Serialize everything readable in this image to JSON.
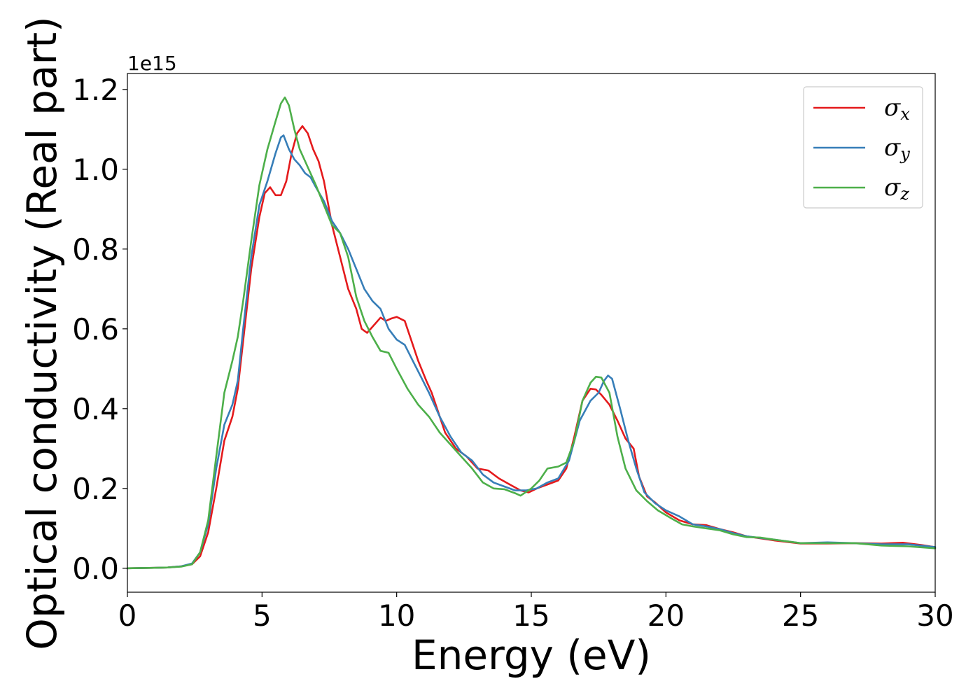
{
  "chart_data": {
    "type": "line",
    "xlabel": "Energy (eV)",
    "ylabel": "Optical conductivity (Real part)",
    "y_offset_label": "1e15",
    "xlim": [
      0,
      30
    ],
    "ylim": [
      -0.06,
      1.24
    ],
    "x_ticks": [
      0,
      5,
      10,
      15,
      20,
      25,
      30
    ],
    "y_ticks": [
      0.0,
      0.2,
      0.4,
      0.6,
      0.8,
      1.0,
      1.2
    ],
    "x_tick_labels": [
      "0",
      "5",
      "10",
      "15",
      "20",
      "25",
      "30"
    ],
    "y_tick_labels": [
      "0.0",
      "0.2",
      "0.4",
      "0.6",
      "0.8",
      "1.0",
      "1.2"
    ],
    "grid": false,
    "legend_position": "top-right",
    "series": [
      {
        "name": "σx",
        "symbol": "σ",
        "subscript": "x",
        "color": "#e41a1c",
        "points": [
          [
            0,
            0
          ],
          [
            1,
            0.001
          ],
          [
            1.5,
            0.002
          ],
          [
            2,
            0.005
          ],
          [
            2.4,
            0.01
          ],
          [
            2.7,
            0.03
          ],
          [
            3,
            0.09
          ],
          [
            3.3,
            0.2
          ],
          [
            3.6,
            0.32
          ],
          [
            3.9,
            0.38
          ],
          [
            4.1,
            0.45
          ],
          [
            4.3,
            0.57
          ],
          [
            4.6,
            0.75
          ],
          [
            4.9,
            0.88
          ],
          [
            5.1,
            0.94
          ],
          [
            5.3,
            0.955
          ],
          [
            5.5,
            0.935
          ],
          [
            5.7,
            0.935
          ],
          [
            5.9,
            0.97
          ],
          [
            6.1,
            1.04
          ],
          [
            6.3,
            1.09
          ],
          [
            6.5,
            1.108
          ],
          [
            6.7,
            1.09
          ],
          [
            6.9,
            1.05
          ],
          [
            7.1,
            1.02
          ],
          [
            7.3,
            0.97
          ],
          [
            7.6,
            0.86
          ],
          [
            7.9,
            0.78
          ],
          [
            8.2,
            0.7
          ],
          [
            8.5,
            0.65
          ],
          [
            8.7,
            0.6
          ],
          [
            8.9,
            0.59
          ],
          [
            9.1,
            0.605
          ],
          [
            9.4,
            0.628
          ],
          [
            9.6,
            0.62
          ],
          [
            9.8,
            0.626
          ],
          [
            10.0,
            0.63
          ],
          [
            10.3,
            0.62
          ],
          [
            10.5,
            0.58
          ],
          [
            10.8,
            0.52
          ],
          [
            11.1,
            0.47
          ],
          [
            11.3,
            0.44
          ],
          [
            11.5,
            0.4
          ],
          [
            11.8,
            0.34
          ],
          [
            12.2,
            0.3
          ],
          [
            12.6,
            0.28
          ],
          [
            13.0,
            0.25
          ],
          [
            13.4,
            0.245
          ],
          [
            13.8,
            0.225
          ],
          [
            14.2,
            0.21
          ],
          [
            14.6,
            0.195
          ],
          [
            14.9,
            0.19
          ],
          [
            15.2,
            0.2
          ],
          [
            15.6,
            0.21
          ],
          [
            16.0,
            0.22
          ],
          [
            16.3,
            0.25
          ],
          [
            16.6,
            0.33
          ],
          [
            16.9,
            0.42
          ],
          [
            17.2,
            0.45
          ],
          [
            17.4,
            0.448
          ],
          [
            17.6,
            0.435
          ],
          [
            17.9,
            0.41
          ],
          [
            18.2,
            0.37
          ],
          [
            18.5,
            0.325
          ],
          [
            18.8,
            0.3
          ],
          [
            19.0,
            0.23
          ],
          [
            19.3,
            0.18
          ],
          [
            19.6,
            0.165
          ],
          [
            20.0,
            0.14
          ],
          [
            20.5,
            0.12
          ],
          [
            21.0,
            0.11
          ],
          [
            21.5,
            0.108
          ],
          [
            22.0,
            0.098
          ],
          [
            22.5,
            0.09
          ],
          [
            23.0,
            0.08
          ],
          [
            24.0,
            0.07
          ],
          [
            25.0,
            0.062
          ],
          [
            26.0,
            0.062
          ],
          [
            27.0,
            0.063
          ],
          [
            28.0,
            0.062
          ],
          [
            28.8,
            0.064
          ],
          [
            29.5,
            0.058
          ],
          [
            30,
            0.053
          ]
        ]
      },
      {
        "name": "σy",
        "symbol": "σ",
        "subscript": "y",
        "color": "#377eb8",
        "points": [
          [
            0,
            0
          ],
          [
            1,
            0.001
          ],
          [
            1.5,
            0.002
          ],
          [
            2,
            0.005
          ],
          [
            2.4,
            0.012
          ],
          [
            2.7,
            0.04
          ],
          [
            3,
            0.11
          ],
          [
            3.3,
            0.25
          ],
          [
            3.6,
            0.36
          ],
          [
            3.9,
            0.41
          ],
          [
            4.1,
            0.47
          ],
          [
            4.3,
            0.6
          ],
          [
            4.6,
            0.78
          ],
          [
            4.9,
            0.91
          ],
          [
            5.2,
            0.97
          ],
          [
            5.5,
            1.04
          ],
          [
            5.7,
            1.08
          ],
          [
            5.8,
            1.085
          ],
          [
            6.0,
            1.05
          ],
          [
            6.2,
            1.025
          ],
          [
            6.4,
            1.01
          ],
          [
            6.6,
            0.99
          ],
          [
            6.8,
            0.98
          ],
          [
            7.0,
            0.955
          ],
          [
            7.3,
            0.92
          ],
          [
            7.6,
            0.87
          ],
          [
            7.9,
            0.84
          ],
          [
            8.2,
            0.8
          ],
          [
            8.5,
            0.75
          ],
          [
            8.8,
            0.7
          ],
          [
            9.1,
            0.67
          ],
          [
            9.4,
            0.65
          ],
          [
            9.7,
            0.6
          ],
          [
            10.0,
            0.573
          ],
          [
            10.3,
            0.56
          ],
          [
            10.6,
            0.52
          ],
          [
            10.9,
            0.48
          ],
          [
            11.2,
            0.44
          ],
          [
            11.6,
            0.38
          ],
          [
            12.0,
            0.33
          ],
          [
            12.4,
            0.29
          ],
          [
            12.8,
            0.27
          ],
          [
            13.2,
            0.235
          ],
          [
            13.6,
            0.215
          ],
          [
            14.0,
            0.205
          ],
          [
            14.4,
            0.195
          ],
          [
            14.8,
            0.195
          ],
          [
            15.2,
            0.2
          ],
          [
            15.6,
            0.215
          ],
          [
            16.0,
            0.225
          ],
          [
            16.4,
            0.27
          ],
          [
            16.8,
            0.37
          ],
          [
            17.2,
            0.42
          ],
          [
            17.5,
            0.44
          ],
          [
            17.7,
            0.47
          ],
          [
            17.85,
            0.483
          ],
          [
            18.0,
            0.475
          ],
          [
            18.3,
            0.4
          ],
          [
            18.6,
            0.32
          ],
          [
            18.9,
            0.25
          ],
          [
            19.2,
            0.19
          ],
          [
            19.6,
            0.163
          ],
          [
            20.0,
            0.145
          ],
          [
            20.5,
            0.13
          ],
          [
            21.0,
            0.11
          ],
          [
            21.5,
            0.105
          ],
          [
            22.0,
            0.098
          ],
          [
            22.5,
            0.088
          ],
          [
            23.0,
            0.08
          ],
          [
            24.0,
            0.072
          ],
          [
            25.0,
            0.063
          ],
          [
            26.0,
            0.065
          ],
          [
            27.0,
            0.063
          ],
          [
            28.0,
            0.06
          ],
          [
            29.0,
            0.06
          ],
          [
            30,
            0.053
          ]
        ]
      },
      {
        "name": "σz",
        "symbol": "σ",
        "subscript": "z",
        "color": "#4daf4a",
        "points": [
          [
            0,
            0
          ],
          [
            1,
            0.001
          ],
          [
            1.5,
            0.002
          ],
          [
            2,
            0.004
          ],
          [
            2.4,
            0.01
          ],
          [
            2.7,
            0.04
          ],
          [
            3,
            0.12
          ],
          [
            3.3,
            0.28
          ],
          [
            3.6,
            0.44
          ],
          [
            3.9,
            0.52
          ],
          [
            4.1,
            0.58
          ],
          [
            4.3,
            0.67
          ],
          [
            4.6,
            0.82
          ],
          [
            4.9,
            0.96
          ],
          [
            5.2,
            1.05
          ],
          [
            5.5,
            1.12
          ],
          [
            5.7,
            1.165
          ],
          [
            5.85,
            1.18
          ],
          [
            6.0,
            1.16
          ],
          [
            6.2,
            1.1
          ],
          [
            6.4,
            1.05
          ],
          [
            6.6,
            1.02
          ],
          [
            6.8,
            0.99
          ],
          [
            7.0,
            0.96
          ],
          [
            7.3,
            0.91
          ],
          [
            7.6,
            0.86
          ],
          [
            7.9,
            0.84
          ],
          [
            8.2,
            0.78
          ],
          [
            8.5,
            0.68
          ],
          [
            8.8,
            0.62
          ],
          [
            9.1,
            0.58
          ],
          [
            9.4,
            0.545
          ],
          [
            9.7,
            0.54
          ],
          [
            10.0,
            0.5
          ],
          [
            10.4,
            0.45
          ],
          [
            10.8,
            0.41
          ],
          [
            11.2,
            0.38
          ],
          [
            11.6,
            0.34
          ],
          [
            12.0,
            0.31
          ],
          [
            12.4,
            0.28
          ],
          [
            12.8,
            0.25
          ],
          [
            13.2,
            0.215
          ],
          [
            13.6,
            0.2
          ],
          [
            14.0,
            0.198
          ],
          [
            14.4,
            0.188
          ],
          [
            14.6,
            0.182
          ],
          [
            15.0,
            0.2
          ],
          [
            15.3,
            0.22
          ],
          [
            15.6,
            0.25
          ],
          [
            16.0,
            0.255
          ],
          [
            16.3,
            0.265
          ],
          [
            16.6,
            0.32
          ],
          [
            16.9,
            0.42
          ],
          [
            17.2,
            0.465
          ],
          [
            17.4,
            0.48
          ],
          [
            17.6,
            0.478
          ],
          [
            17.9,
            0.44
          ],
          [
            18.2,
            0.33
          ],
          [
            18.5,
            0.25
          ],
          [
            18.9,
            0.195
          ],
          [
            19.3,
            0.168
          ],
          [
            19.7,
            0.145
          ],
          [
            20.2,
            0.125
          ],
          [
            20.6,
            0.11
          ],
          [
            21.0,
            0.105
          ],
          [
            21.5,
            0.1
          ],
          [
            22.0,
            0.095
          ],
          [
            22.5,
            0.085
          ],
          [
            23.0,
            0.078
          ],
          [
            23.5,
            0.077
          ],
          [
            24.0,
            0.072
          ],
          [
            25.0,
            0.063
          ],
          [
            26.0,
            0.063
          ],
          [
            27.0,
            0.063
          ],
          [
            27.5,
            0.06
          ],
          [
            28.0,
            0.057
          ],
          [
            29.0,
            0.055
          ],
          [
            30,
            0.05
          ]
        ]
      }
    ]
  }
}
